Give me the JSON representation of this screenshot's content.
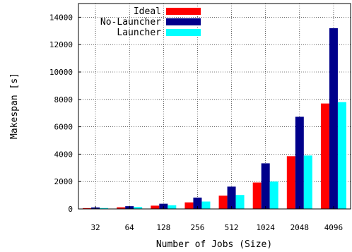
{
  "chart_data": {
    "type": "bar",
    "title": "",
    "xlabel": "Number of Jobs (Size)",
    "ylabel": "Makespan [s]",
    "categories": [
      "32",
      "64",
      "128",
      "256",
      "512",
      "1024",
      "2048",
      "4096"
    ],
    "ylim": [
      0,
      15000
    ],
    "yticks": [
      0,
      2000,
      4000,
      6000,
      8000,
      10000,
      12000,
      14000
    ],
    "grid": true,
    "legend_position": "top-left",
    "series": [
      {
        "name": "Ideal",
        "color": "#ff0000",
        "values": [
          60,
          120,
          240,
          480,
          970,
          1930,
          3850,
          7700
        ]
      },
      {
        "name": "No-Launcher",
        "color": "#00008b",
        "values": [
          110,
          200,
          380,
          830,
          1630,
          3330,
          6730,
          13200
        ]
      },
      {
        "name": "Launcher",
        "color": "#00ffff",
        "values": [
          65,
          140,
          270,
          540,
          1020,
          2000,
          3900,
          7800
        ]
      }
    ]
  }
}
